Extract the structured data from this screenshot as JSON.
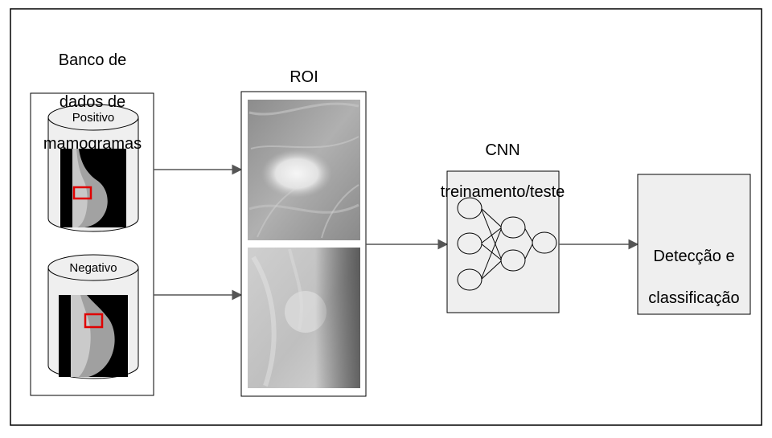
{
  "database": {
    "title_lines": [
      "Banco de",
      "dados de",
      "mamogramas"
    ],
    "positive_label": "Positivo",
    "negative_label": "Negativo"
  },
  "roi": {
    "title": "ROI"
  },
  "cnn": {
    "title_lines": [
      "CNN",
      "treinamento/teste"
    ]
  },
  "output": {
    "label_lines": [
      "Detecção e",
      "classificação"
    ]
  },
  "colors": {
    "stroke": "#000000",
    "arrow": "#555555",
    "roi_box": "#e00000",
    "panel_fill": "#efefef"
  }
}
